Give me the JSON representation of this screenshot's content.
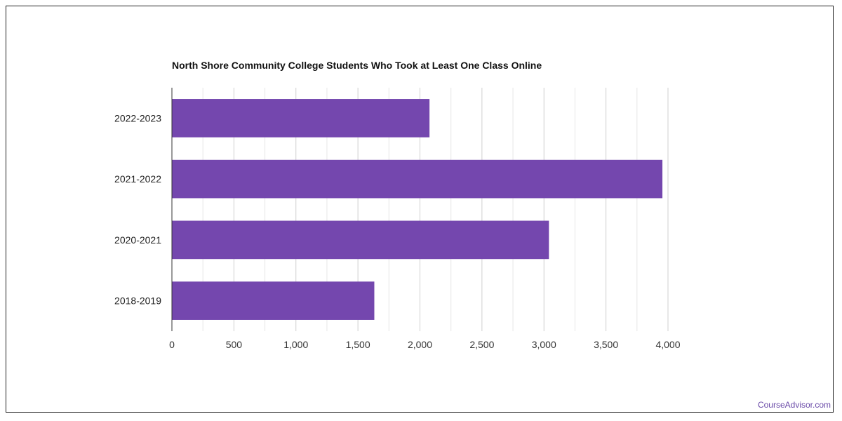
{
  "chart_data": {
    "type": "bar",
    "orientation": "horizontal",
    "title": "North Shore Community College Students Who Took at Least One Class Online",
    "categories": [
      "2022-2023",
      "2021-2022",
      "2020-2021",
      "2018-2019"
    ],
    "values": [
      2077,
      3955,
      3040,
      1632
    ],
    "xlim": [
      0,
      4000
    ],
    "x_ticks": [
      0,
      500,
      1000,
      1500,
      2000,
      2500,
      3000,
      3500,
      4000
    ],
    "x_tick_labels": [
      "0",
      "500",
      "1,000",
      "1,500",
      "2,000",
      "2,500",
      "3,000",
      "3,500",
      "4,000"
    ],
    "grid": true,
    "bar_color": "#7447ae"
  },
  "watermark": "CourseAdvisor.com"
}
